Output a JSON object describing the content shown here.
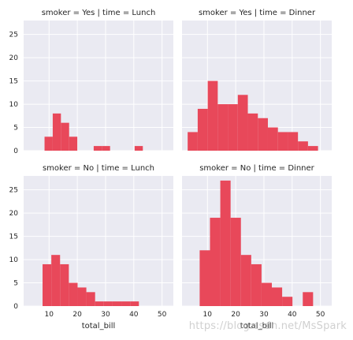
{
  "chart_data": {
    "type": "facet-histogram",
    "style": {
      "bar_color": "#e8485a",
      "panel_bg": "#eaeaf2",
      "grid_color": "#ffffff",
      "grid": true
    },
    "xlim": [
      1,
      54
    ],
    "ylim": [
      0,
      28
    ],
    "xticks": [
      10,
      20,
      30,
      40,
      50
    ],
    "yticks": [
      0,
      5,
      10,
      15,
      20,
      25
    ],
    "xlabel": "total_bill",
    "panels": [
      {
        "title": "smoker = Yes | time = Lunch",
        "bin_edges": [
          8.4,
          11.3,
          14.2,
          17.1,
          20.0,
          22.9,
          25.8,
          28.7,
          31.6,
          34.5,
          37.4,
          40.3,
          43.2
        ],
        "counts": [
          3,
          8,
          6,
          3,
          0,
          0,
          1,
          1,
          0,
          0,
          0,
          1
        ]
      },
      {
        "title": "smoker = Yes | time = Dinner",
        "bin_edges": [
          3.0,
          6.55,
          10.1,
          13.65,
          17.2,
          20.75,
          24.3,
          27.85,
          31.4,
          34.95,
          38.5,
          42.05,
          45.6,
          49.15,
          52.7
        ],
        "counts": [
          4,
          9,
          15,
          10,
          10,
          12,
          8,
          7,
          5,
          4,
          4,
          2,
          1,
          0
        ]
      },
      {
        "title": "smoker = No | time = Lunch",
        "bin_edges": [
          7.7,
          10.8,
          13.9,
          17.0,
          20.1,
          23.2,
          26.3,
          29.4,
          32.5,
          35.6,
          38.7,
          41.8
        ],
        "counts": [
          9,
          11,
          9,
          5,
          4,
          3,
          1,
          1,
          1,
          1,
          1
        ]
      },
      {
        "title": "smoker = No | time = Dinner",
        "bin_edges": [
          7.25,
          10.9,
          14.55,
          18.2,
          21.85,
          25.5,
          29.15,
          32.8,
          36.45,
          40.1,
          43.75,
          47.4,
          51.05
        ],
        "counts": [
          12,
          19,
          27,
          19,
          11,
          9,
          5,
          4,
          2,
          0,
          3,
          0
        ]
      }
    ]
  },
  "watermark": "https://blog.csdn.net/MsSpark"
}
